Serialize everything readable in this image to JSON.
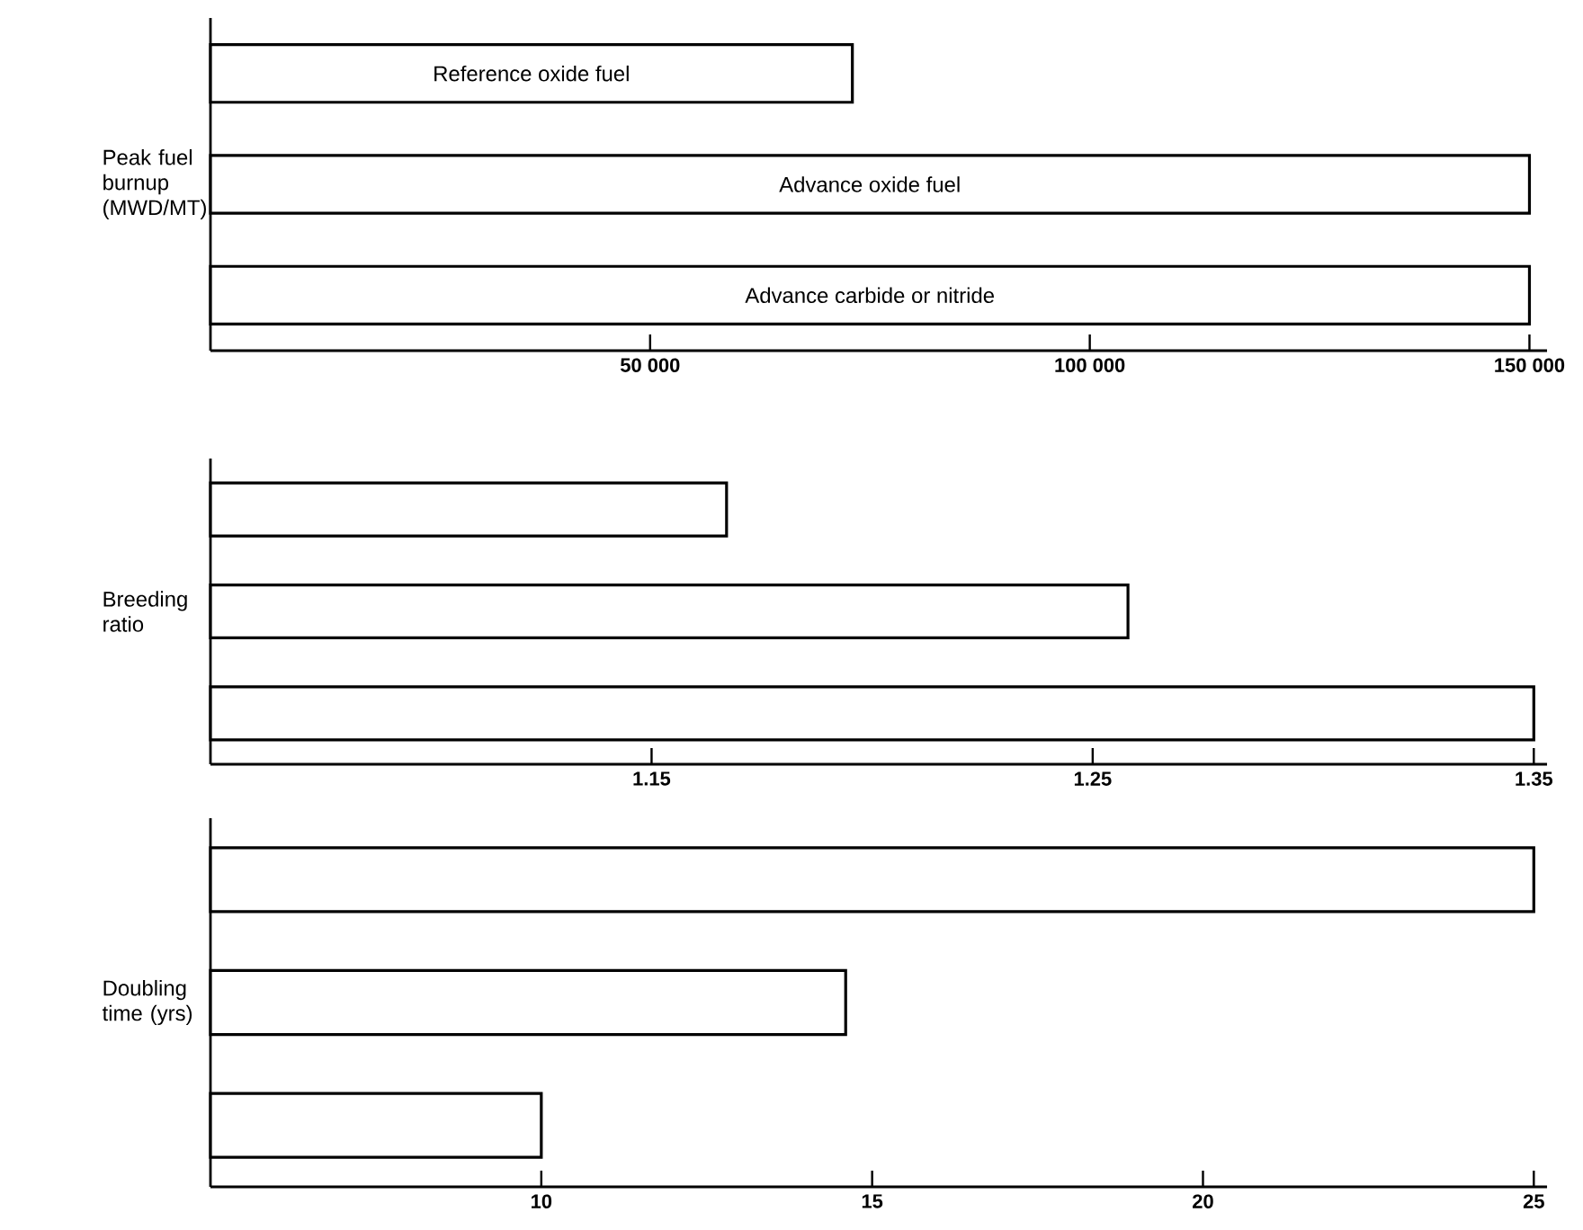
{
  "chart_data": [
    {
      "type": "bar",
      "orientation": "horizontal",
      "ylabel": "Peak fuel burnup (MWD/MT)",
      "categories": [
        "Reference oxide fuel",
        "Advance oxide fuel",
        "Advance carbide or nitride"
      ],
      "values": [
        73000,
        150000,
        150000
      ],
      "color": "#ffffff",
      "xlim": [
        0,
        152000
      ],
      "xticks": [
        {
          "value": 50000,
          "label": "50 000"
        },
        {
          "value": 100000,
          "label": "100 000"
        },
        {
          "value": 150000,
          "label": "150 000"
        }
      ]
    },
    {
      "type": "bar",
      "orientation": "horizontal",
      "ylabel": "Breeding ratio",
      "categories": [
        null,
        null,
        null
      ],
      "values": [
        1.167,
        1.258,
        1.35
      ],
      "color": "#ffffff",
      "xlim": [
        1.05,
        1.353
      ],
      "xticks": [
        1.15,
        1.25,
        1.35
      ]
    },
    {
      "type": "bar",
      "orientation": "horizontal",
      "ylabel": "Doubling time (yrs)",
      "categories": [
        null,
        null,
        null
      ],
      "values": [
        25,
        14.6,
        10
      ],
      "color": "#ffffff",
      "xlim": [
        5,
        25.2
      ],
      "xticks": [
        10,
        15,
        20,
        25
      ]
    }
  ]
}
